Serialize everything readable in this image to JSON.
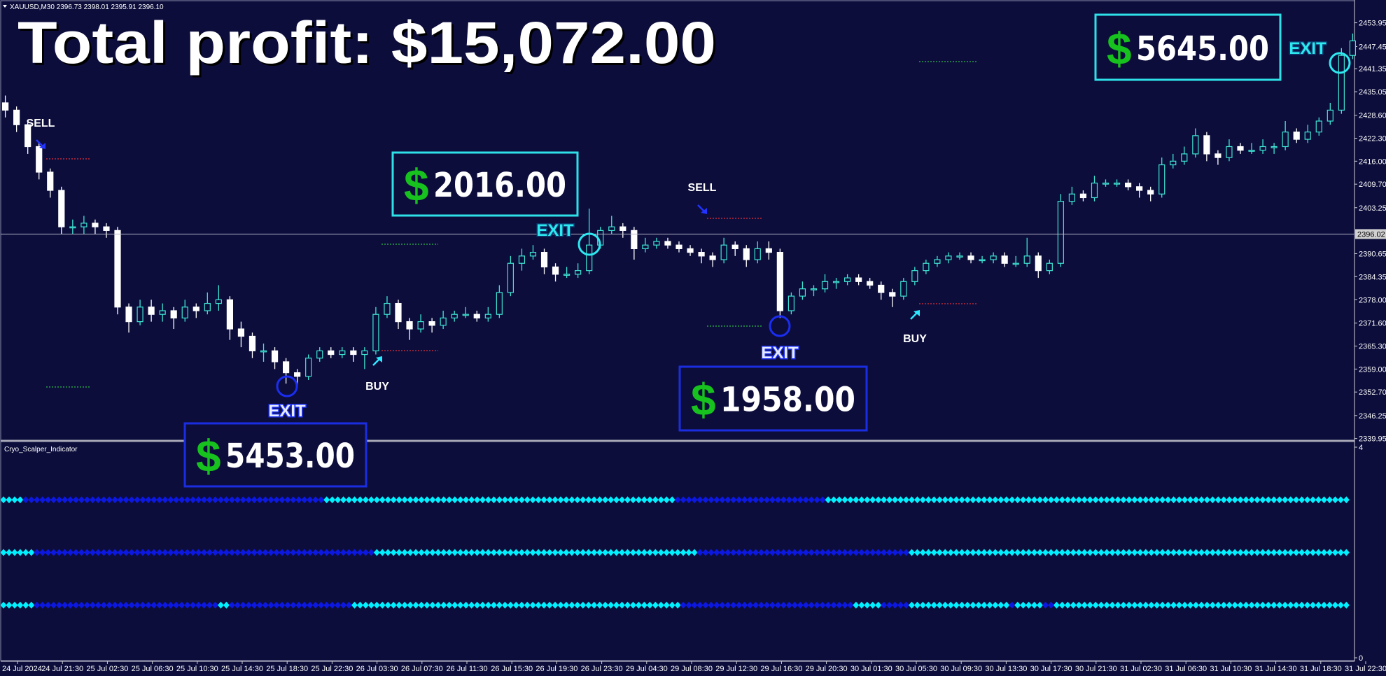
{
  "header": "XAUUSD,M30  2396.73 2398.01 2395.91 2396.10",
  "chart_data": [
    {
      "type": "candlestick",
      "title": "Total profit: $15,072.00",
      "up_color": "#3ee6d3",
      "down_color": "#ffffff",
      "ylim": [
        2339.5,
        2460.2
      ],
      "yticks": [
        2453.95,
        2447.45,
        2441.35,
        2435.05,
        {
          "value": 2428.6,
          "label": "2428.60"
        },
        {
          "value": 2422.3,
          "label": "2422.30"
        },
        {
          "value": 2416,
          "label": "2416.00"
        },
        {
          "value": 2409.7,
          "label": "2409.70"
        },
        2403.25,
        2390.65,
        2384.35,
        {
          "value": 2378,
          "label": "2378.00"
        },
        {
          "value": 2371.6,
          "label": "2371.60"
        },
        {
          "value": 2365.3,
          "label": "2365.30"
        },
        {
          "value": 2359,
          "label": "2359.00"
        },
        {
          "value": 2352.7,
          "label": "2352.70"
        },
        2346.25,
        2339.95
      ],
      "last_price": 2396.02,
      "time_labels": [
        "24 Jul 2024",
        "24 Jul 21:30",
        "25 Jul 02:30",
        "25 Jul 06:30",
        "25 Jul 10:30",
        "25 Jul 14:30",
        "25 Jul 18:30",
        "25 Jul 22:30",
        "26 Jul 03:30",
        "26 Jul 07:30",
        "26 Jul 11:30",
        "26 Jul 15:30",
        "26 Jul 19:30",
        "26 Jul 23:30",
        "29 Jul 04:30",
        "29 Jul 08:30",
        "29 Jul 12:30",
        "29 Jul 16:30",
        "29 Jul 20:30",
        "30 Jul 01:30",
        "30 Jul 05:30",
        "30 Jul 09:30",
        "30 Jul 13:30",
        "30 Jul 17:30",
        "30 Jul 21:30",
        "31 Jul 02:30",
        "31 Jul 06:30",
        "31 Jul 10:30",
        "31 Jul 14:30",
        "31 Jul 18:30",
        "31 Jul 22:30"
      ],
      "ohlc": [
        [
          2432,
          2434,
          2428,
          2430
        ],
        [
          2430,
          2431,
          2424,
          2426
        ],
        [
          2426,
          2427,
          2418,
          2420
        ],
        [
          2420,
          2421,
          2411,
          2413
        ],
        [
          2413,
          2414,
          2406,
          2408
        ],
        [
          2408,
          2409,
          2396,
          2398
        ],
        [
          2398,
          2400,
          2396,
          2398
        ],
        [
          2398,
          2401,
          2396,
          2399
        ],
        [
          2399,
          2400,
          2396,
          2398
        ],
        [
          2398,
          2399,
          2395,
          2397
        ],
        [
          2397,
          2398,
          2374,
          2376
        ],
        [
          2376,
          2377,
          2369,
          2372
        ],
        [
          2372,
          2378,
          2371,
          2376
        ],
        [
          2376,
          2378,
          2372,
          2374
        ],
        [
          2374,
          2377,
          2372,
          2375
        ],
        [
          2375,
          2376,
          2370,
          2373
        ],
        [
          2373,
          2378,
          2372,
          2376
        ],
        [
          2376,
          2377,
          2373,
          2375
        ],
        [
          2375,
          2380,
          2374,
          2377
        ],
        [
          2377,
          2382,
          2375,
          2378
        ],
        [
          2378,
          2379,
          2367,
          2370
        ],
        [
          2370,
          2372,
          2365,
          2368
        ],
        [
          2368,
          2369,
          2362,
          2364
        ],
        [
          2364,
          2366,
          2361,
          2364
        ],
        [
          2364,
          2365,
          2359,
          2361
        ],
        [
          2361,
          2362,
          2355,
          2358
        ],
        [
          2358,
          2359,
          2354,
          2357
        ],
        [
          2357,
          2363,
          2356,
          2362
        ],
        [
          2362,
          2365,
          2361,
          2364
        ],
        [
          2364,
          2365,
          2362,
          2363
        ],
        [
          2363,
          2365,
          2362,
          2364
        ],
        [
          2364,
          2365,
          2361,
          2363
        ],
        [
          2363,
          2365,
          2359,
          2364
        ],
        [
          2364,
          2376,
          2363,
          2374
        ],
        [
          2374,
          2379,
          2373,
          2377
        ],
        [
          2377,
          2378,
          2370,
          2372
        ],
        [
          2372,
          2373,
          2367,
          2370
        ],
        [
          2370,
          2374,
          2369,
          2372
        ],
        [
          2372,
          2373,
          2369,
          2371
        ],
        [
          2371,
          2375,
          2370,
          2373
        ],
        [
          2373,
          2375,
          2372,
          2374
        ],
        [
          2374,
          2376,
          2373,
          2374
        ],
        [
          2374,
          2375,
          2372,
          2373
        ],
        [
          2373,
          2376,
          2372,
          2374
        ],
        [
          2374,
          2382,
          2373,
          2380
        ],
        [
          2380,
          2390,
          2379,
          2388
        ],
        [
          2388,
          2392,
          2386,
          2390
        ],
        [
          2390,
          2393,
          2389,
          2391
        ],
        [
          2391,
          2392,
          2385,
          2387
        ],
        [
          2387,
          2388,
          2383,
          2385
        ],
        [
          2385,
          2387,
          2384,
          2385
        ],
        [
          2385,
          2388,
          2384,
          2386
        ],
        [
          2386,
          2403,
          2385,
          2393
        ],
        [
          2393,
          2398,
          2392,
          2397
        ],
        [
          2397,
          2401,
          2396,
          2398
        ],
        [
          2398,
          2399,
          2395,
          2397
        ],
        [
          2397,
          2398,
          2389,
          2392
        ],
        [
          2392,
          2395,
          2391,
          2393
        ],
        [
          2393,
          2395,
          2392,
          2394
        ],
        [
          2394,
          2395,
          2392,
          2393
        ],
        [
          2393,
          2394,
          2391,
          2392
        ],
        [
          2392,
          2393,
          2390,
          2391
        ],
        [
          2391,
          2392,
          2388,
          2390
        ],
        [
          2390,
          2391,
          2387,
          2389
        ],
        [
          2389,
          2395,
          2388,
          2393
        ],
        [
          2393,
          2394,
          2390,
          2392
        ],
        [
          2392,
          2393,
          2387,
          2389
        ],
        [
          2389,
          2394,
          2388,
          2392
        ],
        [
          2392,
          2394,
          2389,
          2391
        ],
        [
          2391,
          2392,
          2373,
          2375
        ],
        [
          2375,
          2380,
          2374,
          2379
        ],
        [
          2379,
          2383,
          2378,
          2381
        ],
        [
          2381,
          2382,
          2379,
          2381
        ],
        [
          2381,
          2385,
          2380,
          2383
        ],
        [
          2383,
          2384,
          2381,
          2383
        ],
        [
          2383,
          2385,
          2382,
          2384
        ],
        [
          2384,
          2385,
          2382,
          2383
        ],
        [
          2383,
          2384,
          2381,
          2382
        ],
        [
          2382,
          2383,
          2378,
          2380
        ],
        [
          2380,
          2381,
          2376,
          2379
        ],
        [
          2379,
          2384,
          2378,
          2383
        ],
        [
          2383,
          2387,
          2382,
          2386
        ],
        [
          2386,
          2389,
          2385,
          2388
        ],
        [
          2388,
          2390,
          2387,
          2389
        ],
        [
          2389,
          2391,
          2388,
          2390
        ],
        [
          2390,
          2391,
          2389,
          2390
        ],
        [
          2390,
          2391,
          2388,
          2389
        ],
        [
          2389,
          2390,
          2388,
          2389
        ],
        [
          2389,
          2391,
          2388,
          2390
        ],
        [
          2390,
          2391,
          2387,
          2388
        ],
        [
          2388,
          2390,
          2387,
          2388
        ],
        [
          2388,
          2395,
          2387,
          2390
        ],
        [
          2390,
          2391,
          2384,
          2386
        ],
        [
          2386,
          2389,
          2385,
          2388
        ],
        [
          2388,
          2407,
          2387,
          2405
        ],
        [
          2405,
          2409,
          2404,
          2407
        ],
        [
          2407,
          2408,
          2405,
          2406
        ],
        [
          2406,
          2412,
          2405,
          2410
        ],
        [
          2410,
          2411,
          2409,
          2410
        ],
        [
          2410,
          2411,
          2409,
          2410
        ],
        [
          2410,
          2411,
          2408,
          2409
        ],
        [
          2409,
          2410,
          2406,
          2408
        ],
        [
          2408,
          2409,
          2405,
          2407
        ],
        [
          2407,
          2417,
          2406,
          2415
        ],
        [
          2415,
          2418,
          2414,
          2416
        ],
        [
          2416,
          2420,
          2415,
          2418
        ],
        [
          2418,
          2425,
          2417,
          2423
        ],
        [
          2423,
          2424,
          2416,
          2418
        ],
        [
          2418,
          2419,
          2415,
          2417
        ],
        [
          2417,
          2422,
          2416,
          2420
        ],
        [
          2420,
          2421,
          2418,
          2419
        ],
        [
          2419,
          2421,
          2418,
          2419
        ],
        [
          2419,
          2422,
          2418,
          2420
        ],
        [
          2420,
          2421,
          2418,
          2420
        ],
        [
          2420,
          2427,
          2419,
          2424
        ],
        [
          2424,
          2425,
          2421,
          2422
        ],
        [
          2422,
          2426,
          2421,
          2424
        ],
        [
          2424,
          2428,
          2423,
          2427
        ],
        [
          2427,
          2432,
          2426,
          2430
        ],
        [
          2430,
          2447,
          2429,
          2445
        ],
        [
          2445,
          2451,
          2444,
          2449
        ]
      ],
      "signals": [
        {
          "label": "SELL",
          "color": "#2233ff"
        },
        {
          "label": "BUY",
          "color": "#2ee8ff"
        },
        {
          "label": "SELL",
          "color": "#2233ff"
        },
        {
          "label": "BUY",
          "color": "#2ee8ff"
        }
      ],
      "exits": [
        {
          "label": "EXIT",
          "color": "#1b2df0",
          "text_color": "#e6ebff"
        },
        {
          "label": "EXIT",
          "color": "#2ee8f0",
          "text_color": "#2ee8f0"
        },
        {
          "label": "EXIT",
          "color": "#1b2df0",
          "text_color": "#e6ebff"
        },
        {
          "label": "EXIT",
          "color": "#2ee8f0",
          "text_color": "#2ee8f0"
        }
      ],
      "profits": [
        {
          "symbol": "$",
          "amount": "5453.00",
          "color": "#1b2de0"
        },
        {
          "symbol": "$",
          "amount": "2016.00",
          "color": "#2ee0e8"
        },
        {
          "symbol": "$",
          "amount": "1958.00",
          "color": "#1b2de0"
        },
        {
          "symbol": "$",
          "amount": "5645.00",
          "color": "#2ee0e8"
        }
      ]
    },
    {
      "type": "indicator",
      "title": "Cryo_Scalper_Indicator",
      "ylim": [
        0,
        4
      ],
      "yticks": [
        4,
        0
      ],
      "on_color": "#00f0ff",
      "off_color": "#0c18e0",
      "rows": [
        {
          "level": 3,
          "runs": [
            [
              1,
              4
            ],
            [
              0,
              54
            ],
            [
              1,
              63
            ],
            [
              0,
              27
            ],
            [
              1,
              94
            ]
          ]
        },
        {
          "level": 2,
          "runs": [
            [
              1,
              6
            ],
            [
              0,
              61
            ],
            [
              1,
              58
            ],
            [
              0,
              38
            ],
            [
              1,
              79
            ]
          ]
        },
        {
          "level": 1,
          "runs": [
            [
              1,
              6
            ],
            [
              0,
              33
            ],
            [
              1,
              2
            ],
            [
              0,
              22
            ],
            [
              1,
              59
            ],
            [
              0,
              31
            ],
            [
              1,
              5
            ],
            [
              0,
              5
            ],
            [
              1,
              18
            ],
            [
              0,
              1
            ],
            [
              1,
              5
            ],
            [
              0,
              2
            ],
            [
              1,
              53
            ]
          ]
        }
      ]
    }
  ]
}
